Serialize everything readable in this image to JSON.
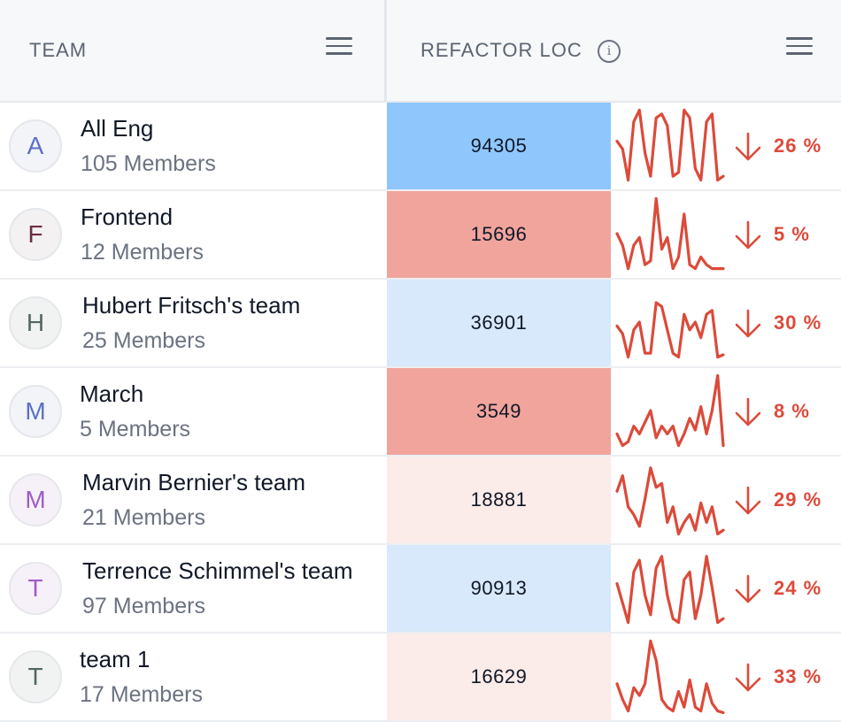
{
  "header": {
    "team_label": "TEAM",
    "loc_label": "REFACTOR LOC",
    "info_glyph": "i",
    "menu_icon": "hamburger-menu-icon",
    "info_icon": "info-circle-icon"
  },
  "colors": {
    "header_bg": "#f7f8fa",
    "trend_red": "#dc4a3a",
    "heat_blue_strong": "#8fc7fc",
    "heat_blue_light": "#d7e9fa",
    "heat_red_strong": "#f0a49c",
    "heat_red_light": "#fbebe9"
  },
  "rows": [
    {
      "initial": "A",
      "name": "All Eng",
      "members": "105 Members",
      "avatar_color": "#5b6fc7",
      "avatar_bg": "#f2f4f8",
      "loc": "94305",
      "heat_color": "#8fc7fc",
      "trend_dir": "down",
      "trend": "26 %",
      "spark": [
        0.55,
        0.45,
        0.05,
        0.8,
        0.95,
        0.4,
        0.1,
        0.85,
        0.9,
        0.75,
        0.1,
        0.15,
        0.95,
        0.85,
        0.2,
        0.05,
        0.8,
        0.9,
        0.05,
        0.1
      ]
    },
    {
      "initial": "F",
      "name": "Frontend",
      "members": "12 Members",
      "avatar_color": "#6b2d45",
      "avatar_bg": "#f3f1f2",
      "loc": "15696",
      "heat_color": "#f0a49c",
      "trend_dir": "down",
      "trend": "5 %",
      "spark": [
        0.5,
        0.35,
        0.05,
        0.35,
        0.45,
        0.1,
        0.15,
        0.95,
        0.3,
        0.45,
        0.05,
        0.2,
        0.75,
        0.1,
        0.05,
        0.2,
        0.1,
        0.05,
        0.05,
        0.05
      ]
    },
    {
      "initial": "H",
      "name": "Hubert Fritsch's team",
      "members": "25 Members",
      "avatar_color": "#51685e",
      "avatar_bg": "#f1f3f2",
      "loc": "36901",
      "heat_color": "#d7e9fa",
      "trend_dir": "down",
      "trend": "30 %",
      "spark": [
        0.45,
        0.35,
        0.05,
        0.4,
        0.5,
        0.1,
        0.1,
        0.75,
        0.7,
        0.4,
        0.1,
        0.05,
        0.6,
        0.4,
        0.5,
        0.3,
        0.6,
        0.65,
        0.05,
        0.08
      ]
    },
    {
      "initial": "M",
      "name": "March",
      "members": "5 Members",
      "avatar_color": "#5b6fc7",
      "avatar_bg": "#f2f4f8",
      "loc": "3549",
      "heat_color": "#f0a49c",
      "trend_dir": "down",
      "trend": "8 %",
      "spark": [
        0.2,
        0.05,
        0.1,
        0.3,
        0.2,
        0.35,
        0.5,
        0.15,
        0.3,
        0.2,
        0.3,
        0.05,
        0.2,
        0.4,
        0.25,
        0.55,
        0.2,
        0.5,
        0.95,
        0.05
      ]
    },
    {
      "initial": "M",
      "name": "Marvin Bernier's team",
      "members": "21 Members",
      "avatar_color": "#a15bc7",
      "avatar_bg": "#f6f1f8",
      "loc": "18881",
      "heat_color": "#fbebe9",
      "trend_dir": "down",
      "trend": "29 %",
      "spark": [
        0.6,
        0.8,
        0.4,
        0.3,
        0.15,
        0.5,
        0.9,
        0.65,
        0.7,
        0.2,
        0.4,
        0.05,
        0.2,
        0.3,
        0.1,
        0.45,
        0.2,
        0.4,
        0.05,
        0.1
      ]
    },
    {
      "initial": "T",
      "name": "Terrence Schimmel's team",
      "members": "97 Members",
      "avatar_color": "#a15bc7",
      "avatar_bg": "#f6f1f8",
      "loc": "90913",
      "heat_color": "#d7e9fa",
      "trend_dir": "down",
      "trend": "24 %",
      "spark": [
        0.55,
        0.3,
        0.05,
        0.7,
        0.85,
        0.4,
        0.15,
        0.75,
        0.9,
        0.4,
        0.1,
        0.05,
        0.6,
        0.7,
        0.1,
        0.4,
        0.9,
        0.5,
        0.05,
        0.1
      ]
    },
    {
      "initial": "T",
      "name": "team 1",
      "members": "17 Members",
      "avatar_color": "#51685e",
      "avatar_bg": "#f1f3f2",
      "loc": "16629",
      "heat_color": "#fbebe9",
      "trend_dir": "down",
      "trend": "33 %",
      "spark": [
        0.4,
        0.2,
        0.05,
        0.35,
        0.25,
        0.4,
        0.95,
        0.7,
        0.2,
        0.1,
        0.05,
        0.3,
        0.1,
        0.45,
        0.1,
        0.05,
        0.4,
        0.15,
        0.05,
        0.03
      ]
    }
  ]
}
